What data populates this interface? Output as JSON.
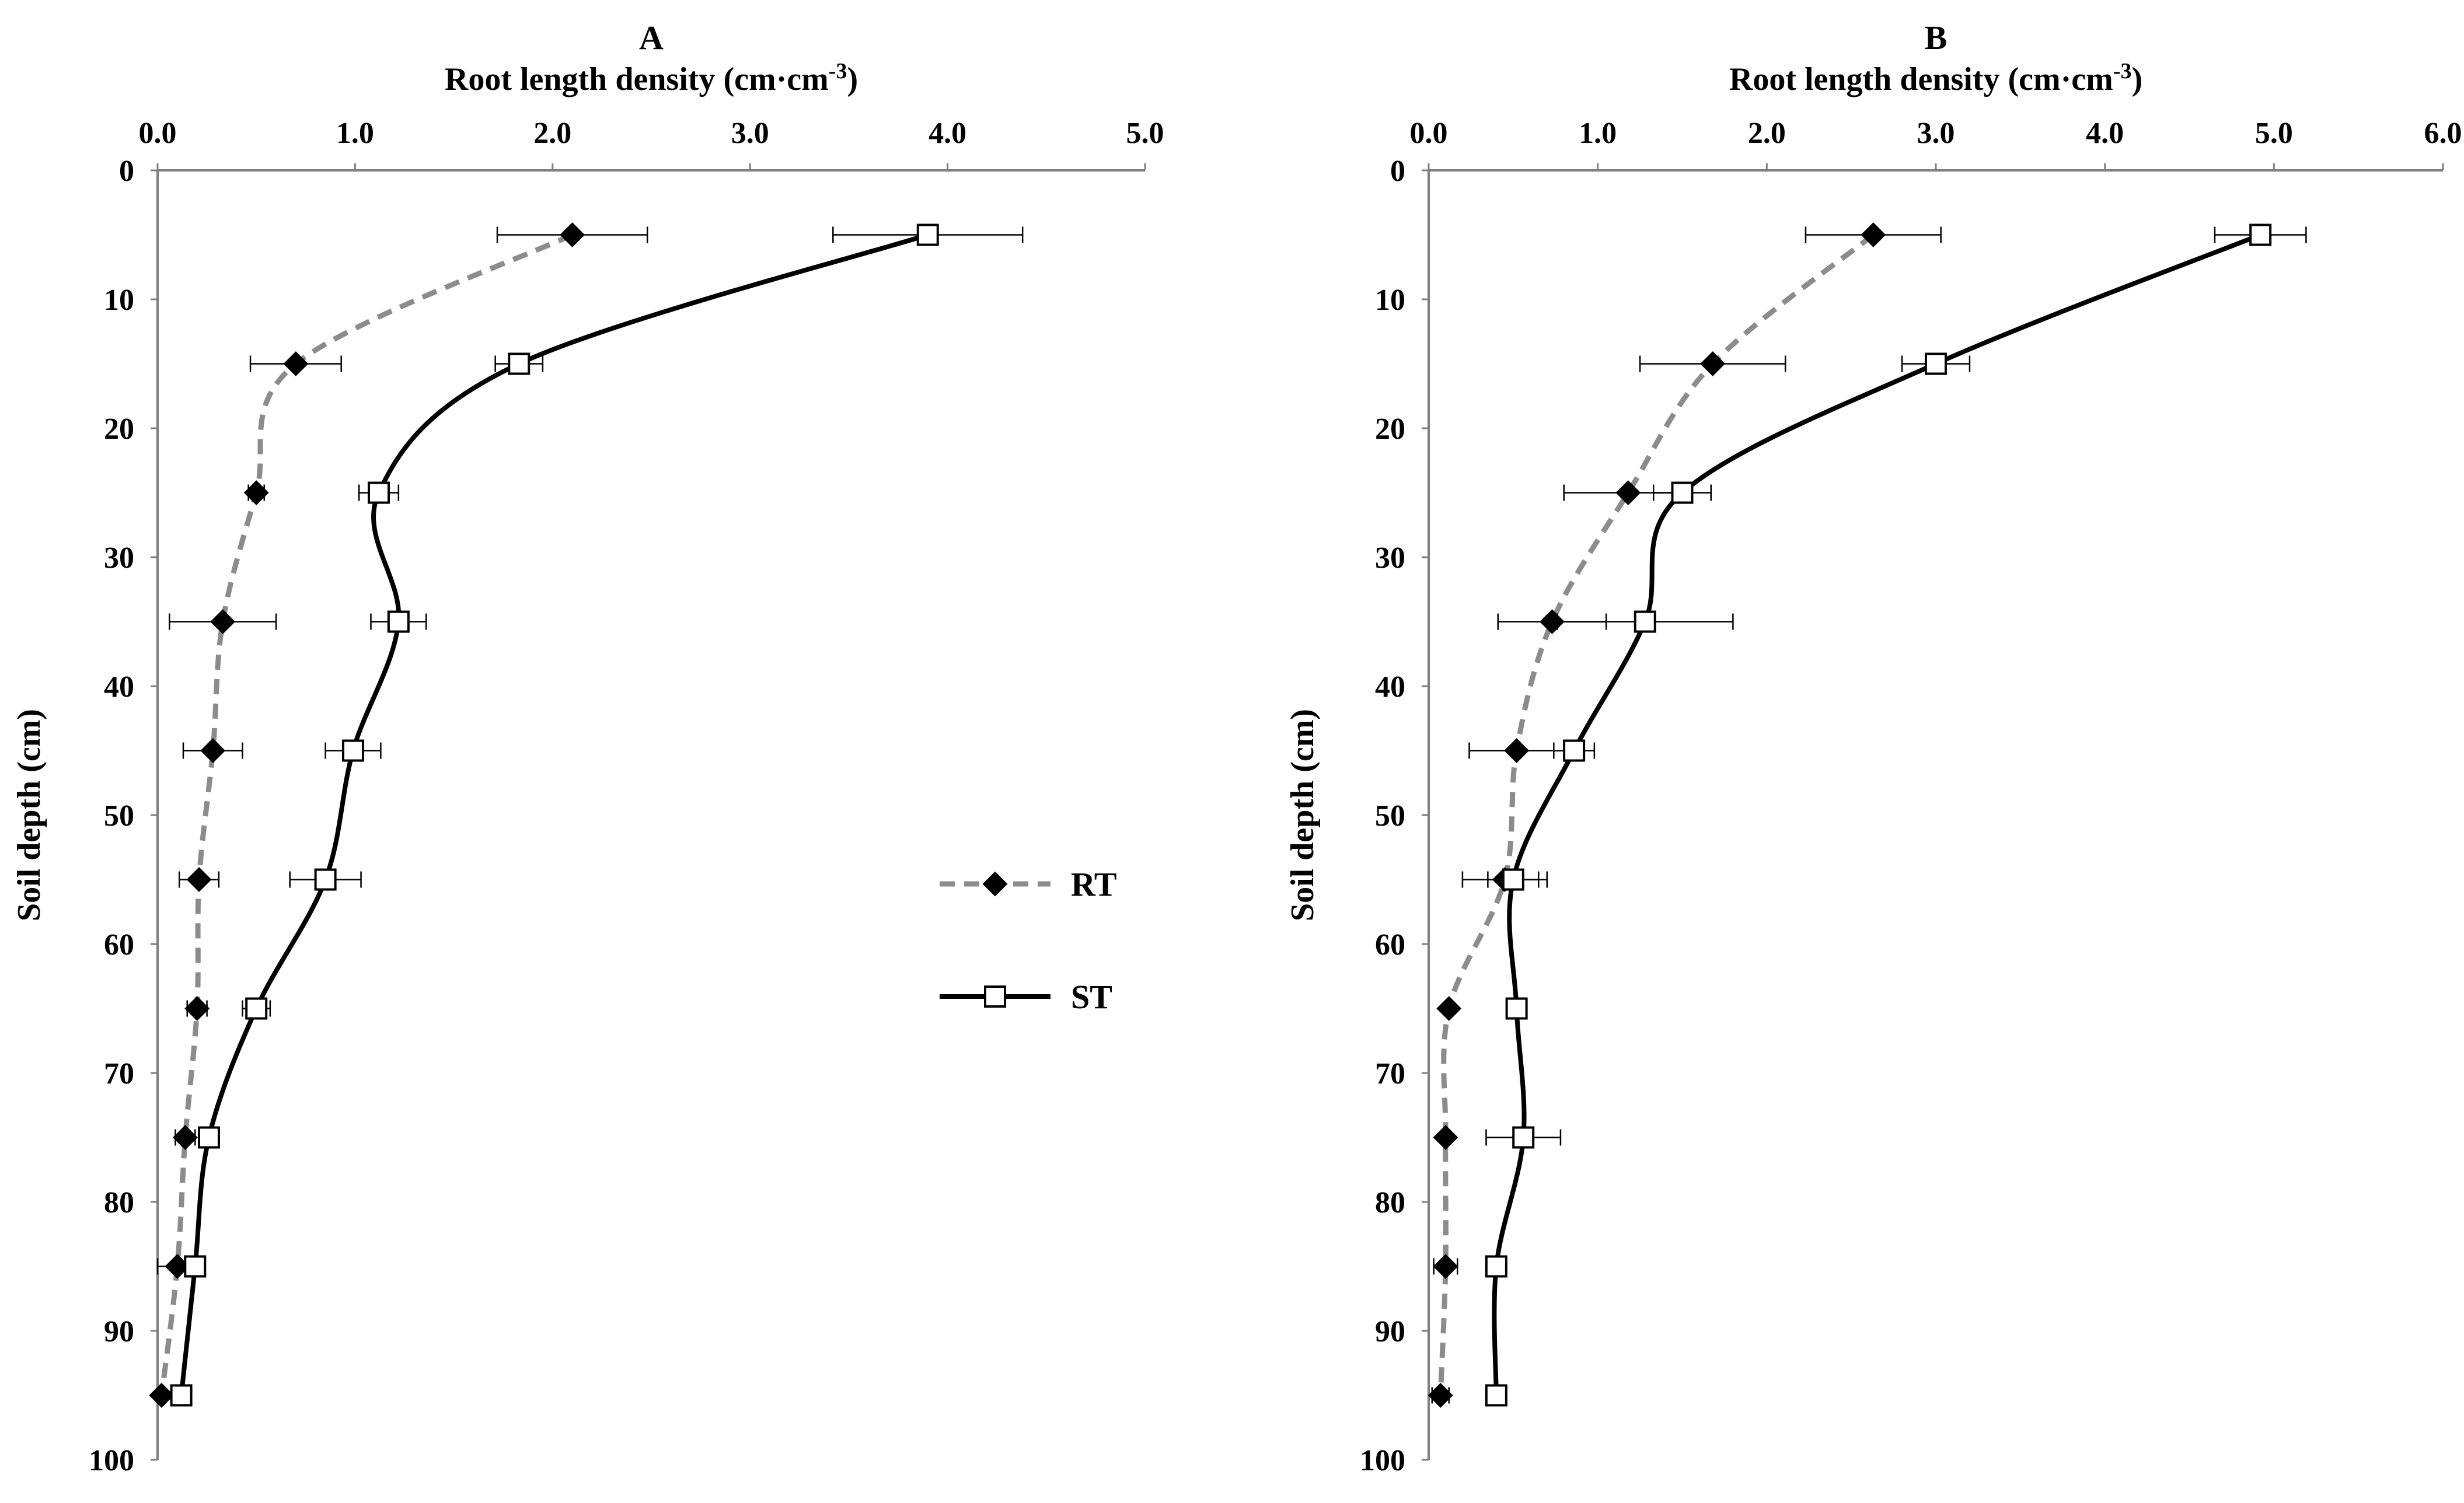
{
  "figure": {
    "legend": [
      {
        "key": "RT",
        "label": "RT",
        "line": "dashed",
        "line_color": "#8c8c8c",
        "marker": "diamond",
        "marker_fill": "#000000"
      },
      {
        "key": "ST",
        "label": "ST",
        "line": "solid",
        "line_color": "#000000",
        "marker": "square",
        "marker_fill": "#ffffff"
      }
    ]
  },
  "chart_data": [
    {
      "type": "line",
      "panel": "A",
      "title": "A",
      "xlabel": "Root length density (cm·cm",
      "xlabel_sup": "-3",
      "xlabel_end": ")",
      "ylabel": "Soil depth (cm)",
      "xlim": [
        0,
        5
      ],
      "ylim": [
        0,
        100
      ],
      "y_inverted": true,
      "x_axis_position": "top",
      "x_ticks": [
        0,
        1,
        2,
        3,
        4,
        5
      ],
      "x_tick_labels": [
        "0.0",
        "1.0",
        "2.0",
        "3.0",
        "4.0",
        "5.0"
      ],
      "y_ticks": [
        0,
        10,
        20,
        30,
        40,
        50,
        60,
        70,
        80,
        90,
        100
      ],
      "y_tick_labels": [
        "0",
        "10",
        "20",
        "30",
        "40",
        "50",
        "60",
        "70",
        "80",
        "90",
        "100"
      ],
      "grid": false,
      "legend_position": "right-middle",
      "series": [
        {
          "name": "RT",
          "depth": [
            5,
            15,
            25,
            35,
            45,
            55,
            65,
            75,
            85,
            95
          ],
          "values": [
            2.1,
            0.7,
            0.5,
            0.33,
            0.28,
            0.21,
            0.2,
            0.14,
            0.1,
            0.02
          ],
          "errors": [
            0.38,
            0.23,
            0.04,
            0.27,
            0.15,
            0.1,
            0.05,
            0.05,
            0.1,
            0.02
          ]
        },
        {
          "name": "ST",
          "depth": [
            5,
            15,
            25,
            35,
            45,
            55,
            65,
            75,
            85,
            95
          ],
          "values": [
            3.9,
            1.83,
            1.12,
            1.22,
            0.99,
            0.85,
            0.5,
            0.26,
            0.19,
            0.12
          ],
          "errors": [
            0.48,
            0.12,
            0.1,
            0.14,
            0.14,
            0.18,
            0.07,
            0.04,
            0.04,
            0.03
          ]
        }
      ]
    },
    {
      "type": "line",
      "panel": "B",
      "title": "B",
      "xlabel": "Root length density (cm·cm",
      "xlabel_sup": "-3",
      "xlabel_end": ")",
      "ylabel": "Soil depth (cm)",
      "xlim": [
        0,
        6
      ],
      "ylim": [
        0,
        100
      ],
      "y_inverted": true,
      "x_axis_position": "top",
      "x_ticks": [
        0,
        1,
        2,
        3,
        4,
        5,
        6
      ],
      "x_tick_labels": [
        "0.0",
        "1.0",
        "2.0",
        "3.0",
        "4.0",
        "5.0",
        "6.0"
      ],
      "y_ticks": [
        0,
        10,
        20,
        30,
        40,
        50,
        60,
        70,
        80,
        90,
        100
      ],
      "y_tick_labels": [
        "0",
        "10",
        "20",
        "30",
        "40",
        "50",
        "60",
        "70",
        "80",
        "90",
        "100"
      ],
      "grid": false,
      "legend_position": "none",
      "series": [
        {
          "name": "RT",
          "depth": [
            5,
            15,
            25,
            35,
            45,
            55,
            65,
            75,
            85,
            95
          ],
          "values": [
            2.63,
            1.68,
            1.18,
            0.73,
            0.52,
            0.45,
            0.12,
            0.1,
            0.1,
            0.07
          ],
          "errors": [
            0.4,
            0.43,
            0.38,
            0.32,
            0.28,
            0.25,
            0.02,
            0.02,
            0.07,
            0.05
          ]
        },
        {
          "name": "ST",
          "depth": [
            5,
            15,
            25,
            35,
            45,
            55,
            65,
            75,
            85,
            95
          ],
          "values": [
            4.92,
            3.0,
            1.5,
            1.28,
            0.86,
            0.5,
            0.52,
            0.56,
            0.4,
            0.4
          ],
          "errors": [
            0.27,
            0.2,
            0.17,
            0.52,
            0.12,
            0.15,
            0.03,
            0.22,
            0.03,
            0.04
          ]
        }
      ]
    }
  ]
}
